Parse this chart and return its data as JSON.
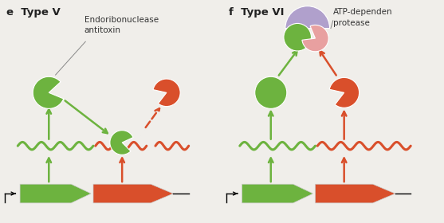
{
  "bg_color": "#f0eeea",
  "green_color": "#6db33f",
  "red_color": "#d94f2b",
  "pink_color": "#e8a0a0",
  "purple_color": "#b0a0cc",
  "title_e": "e  Type V",
  "title_f": "f  Type VI",
  "label_e": "Endoribonuclease\nantitoxin",
  "label_f": "ATP-dependen\nprotease"
}
